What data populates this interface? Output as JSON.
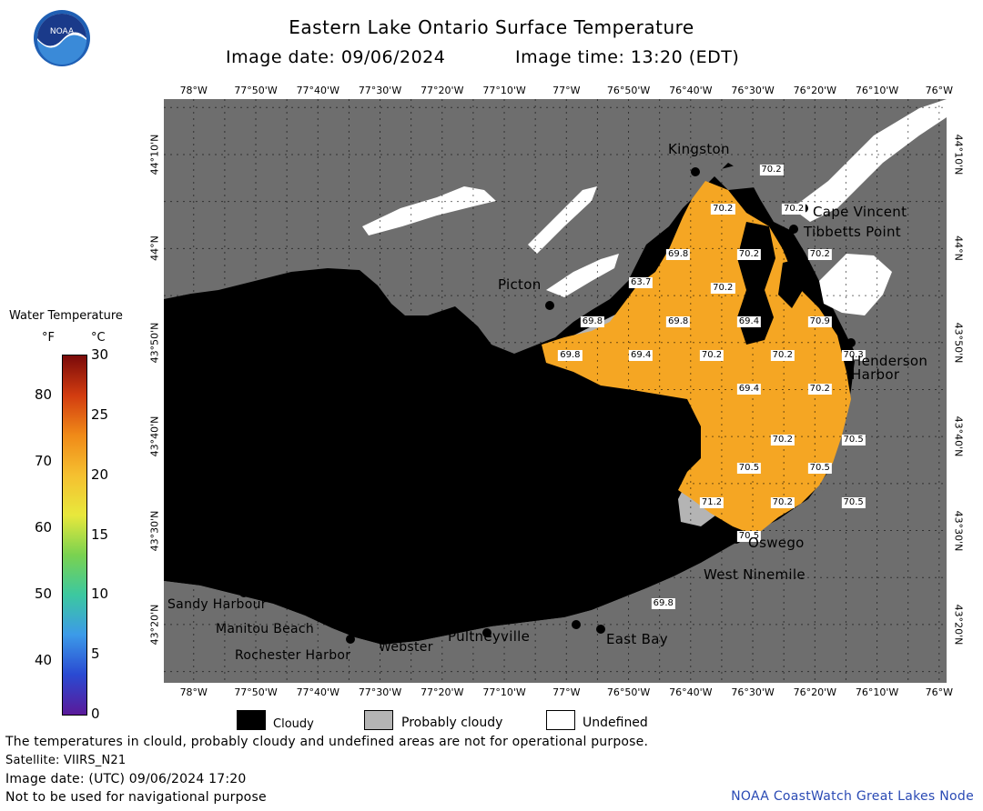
{
  "title": "Eastern Lake Ontario Surface Temperature",
  "image_date_line": "Image date: 09/06/2024",
  "image_time_line": "Image time: 13:20 (EDT)",
  "colorbar": {
    "title": "Water Temperature",
    "unit_f": "°F",
    "unit_c": "°C",
    "f_ticks": [
      "80",
      "70",
      "60",
      "50",
      "40"
    ],
    "c_ticks": [
      "30",
      "25",
      "20",
      "15",
      "10",
      "5",
      "0"
    ],
    "colors": [
      "#7a0a0a",
      "#d23c10",
      "#f08a18",
      "#f5c030",
      "#e8e83c",
      "#7ad250",
      "#3cc8a0",
      "#3c9ae8",
      "#2a4ad2",
      "#5a1a9a"
    ]
  },
  "lon_labels": [
    "78°W",
    "77°50'W",
    "77°40'W",
    "77°30'W",
    "77°20'W",
    "77°10'W",
    "77°W",
    "76°50'W",
    "76°40'W",
    "76°30'W",
    "76°20'W",
    "76°10'W",
    "76°W"
  ],
  "lat_labels": [
    "44°10'N",
    "44°N",
    "43°50'N",
    "43°40'N",
    "43°30'N",
    "43°20'N"
  ],
  "places": {
    "kingston": "Kingston",
    "cape_vincent": "Cape Vincent",
    "tibbetts_point": "Tibbetts Point",
    "picton": "Picton",
    "henderson_harbor_1": "Henderson",
    "henderson_harbor_2": "Harbor",
    "oswego": "Oswego",
    "west_ninemile": "West Ninemile",
    "sandy_harbour": "Sandy Harbour",
    "manitou_beach": "Manitou Beach",
    "rochester_harbor": "Rochester Harbor",
    "webster": "Webster",
    "pultneyville": "Pultneyville",
    "east_bay": "East Bay"
  },
  "temperature_labels": [
    {
      "value": "70.2",
      "lon": -76.45,
      "lat": 44.14
    },
    {
      "value": "70.2",
      "lon": -76.58,
      "lat": 44.07
    },
    {
      "value": "70.2",
      "lon": -76.39,
      "lat": 44.07
    },
    {
      "value": "69.8",
      "lon": -76.7,
      "lat": 43.99
    },
    {
      "value": "70.2",
      "lon": -76.51,
      "lat": 43.99
    },
    {
      "value": "70.2",
      "lon": -76.32,
      "lat": 43.99
    },
    {
      "value": "63.7",
      "lon": -76.8,
      "lat": 43.94
    },
    {
      "value": "70.2",
      "lon": -76.58,
      "lat": 43.93
    },
    {
      "value": "69.8",
      "lon": -76.93,
      "lat": 43.87
    },
    {
      "value": "69.8",
      "lon": -76.7,
      "lat": 43.87
    },
    {
      "value": "69.4",
      "lon": -76.51,
      "lat": 43.87
    },
    {
      "value": "70.9",
      "lon": -76.32,
      "lat": 43.87
    },
    {
      "value": "69.8",
      "lon": -76.99,
      "lat": 43.81
    },
    {
      "value": "69.4",
      "lon": -76.8,
      "lat": 43.81
    },
    {
      "value": "70.2",
      "lon": -76.61,
      "lat": 43.81
    },
    {
      "value": "70.2",
      "lon": -76.42,
      "lat": 43.81
    },
    {
      "value": "70.3",
      "lon": -76.23,
      "lat": 43.81
    },
    {
      "value": "69.4",
      "lon": -76.51,
      "lat": 43.75
    },
    {
      "value": "70.2",
      "lon": -76.32,
      "lat": 43.75
    },
    {
      "value": "70.2",
      "lon": -76.42,
      "lat": 43.66
    },
    {
      "value": "70.5",
      "lon": -76.23,
      "lat": 43.66
    },
    {
      "value": "70.5",
      "lon": -76.51,
      "lat": 43.61
    },
    {
      "value": "70.5",
      "lon": -76.32,
      "lat": 43.61
    },
    {
      "value": "71.2",
      "lon": -76.61,
      "lat": 43.55
    },
    {
      "value": "70.2",
      "lon": -76.42,
      "lat": 43.55
    },
    {
      "value": "70.5",
      "lon": -76.23,
      "lat": 43.55
    },
    {
      "value": "70.5",
      "lon": -76.51,
      "lat": 43.49
    },
    {
      "value": "69.8",
      "lon": -76.74,
      "lat": 43.37
    }
  ],
  "legend": {
    "cloudy": "Cloudy",
    "probably_cloudy": "Probably cloudy",
    "undefined": "Undefined",
    "cloudy_color": "#000000",
    "probably_cloudy_color": "#b4b4b4",
    "undefined_color": "#ffffff"
  },
  "footer": {
    "disclaimer": "The temperatures in clould, probably cloudy and undefined areas are not for operational purpose.",
    "satellite": "Satellite: VIIRS_N21",
    "utc_date": "Image date: (UTC) 09/06/2024  17:20",
    "nav_warning": "Not to be used for navigational purpose",
    "credit": "NOAA CoastWatch Great Lakes Node"
  },
  "colors": {
    "land": "#6e6e6e",
    "water": "#f5a623",
    "cloud": "#000000",
    "credit_text": "#2a4ab4"
  }
}
